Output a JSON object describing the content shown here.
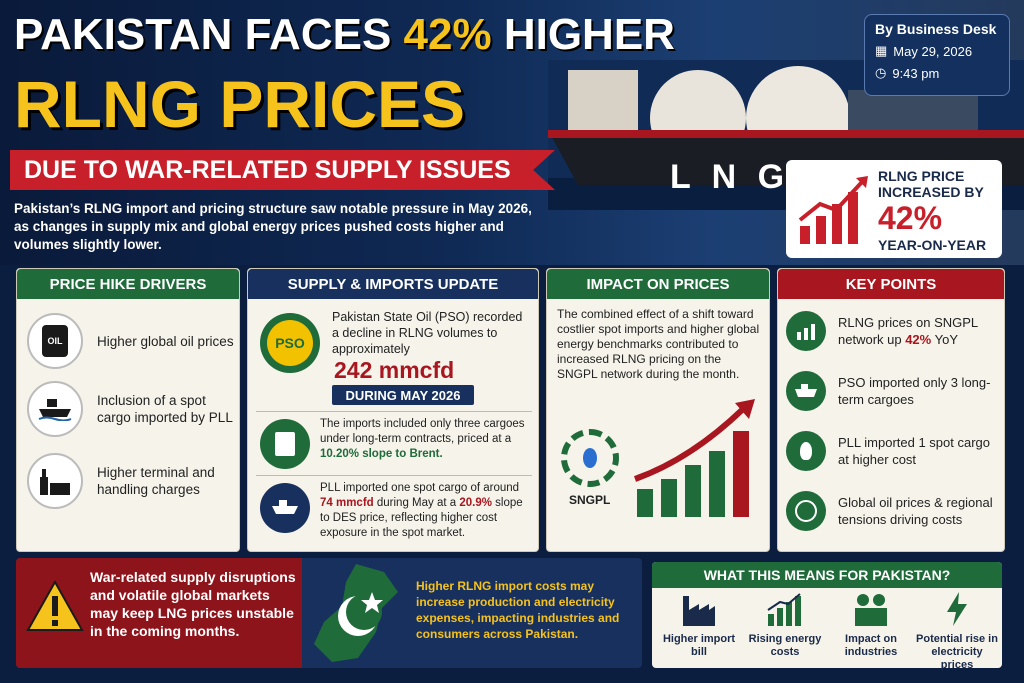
{
  "headline": {
    "line1_a": "PAKISTAN FACES ",
    "line1_b": "42%",
    "line1_c": " HIGHER",
    "line2": "RLNG PRICES",
    "ribbon": "DUE TO WAR-RELATED SUPPLY ISSUES"
  },
  "intro": "Pakistan’s RLNG import and pricing structure saw notable pressure in May 2026, as changes in supply mix and global energy prices pushed costs higher and volumes slightly lower.",
  "byline": {
    "author": "By Business Desk",
    "date": "May 29, 2026",
    "time": "9:43 pm"
  },
  "ship_label": "L N G",
  "price_box": {
    "label": "RLNG PRICE INCREASED BY",
    "value": "42%",
    "suffix": "YEAR-ON-YEAR"
  },
  "drivers": {
    "title": "PRICE HIKE DRIVERS",
    "oil_text": "OIL",
    "items": [
      "Higher global oil prices",
      "Inclusion of a spot cargo imported by PLL",
      "Higher terminal and handling charges"
    ]
  },
  "supply": {
    "title": "SUPPLY & IMPORTS UPDATE",
    "pso_logo": "PSO",
    "pso_text": "Pakistan State Oil (PSO) recorded a decline in RLNG volumes to approximately",
    "volume": "242 mmcfd",
    "period": "DURING MAY 2026",
    "contract_a": "The imports included only three cargoes under long-term contracts, priced at a ",
    "contract_b": "10.20% slope to Brent.",
    "pll_a": "PLL imported one spot cargo of around ",
    "pll_b": "74 mmcfd",
    "pll_c": " during May at a ",
    "pll_d": "20.9%",
    "pll_e": " slope to DES price, reflecting higher cost exposure in the spot market."
  },
  "impact": {
    "title": "IMPACT ON PRICES",
    "text": "The combined effect of a shift toward costlier spot imports and higher global energy benchmarks contributed to increased RLNG pricing on the SNGPL network during the month.",
    "logo": "SNGPL"
  },
  "key_points": {
    "title": "KEY POINTS",
    "p1_a": "RLNG prices on SNGPL network up ",
    "p1_b": "42%",
    "p1_c": " YoY",
    "items": [
      "PSO imported only 3 long-term cargoes",
      "PLL imported 1 spot cargo at higher cost",
      "Global oil prices & regional tensions driving costs"
    ]
  },
  "warning": "War-related supply disruptions and volatile global markets may keep LNG prices unstable in the coming months.",
  "pakistan_note": "Higher RLNG import costs may increase production and electricity expenses, impacting industries and consumers across Pakistan.",
  "what_means": {
    "title": "WHAT THIS MEANS FOR PAKISTAN?",
    "items": [
      "Higher import bill",
      "Rising energy costs",
      "Impact on industries",
      "Potential rise in electricity prices"
    ]
  },
  "colors": {
    "green": "#1f6b3a",
    "navy": "#17305e",
    "red": "#a8161f",
    "gold": "#f6c21c"
  }
}
